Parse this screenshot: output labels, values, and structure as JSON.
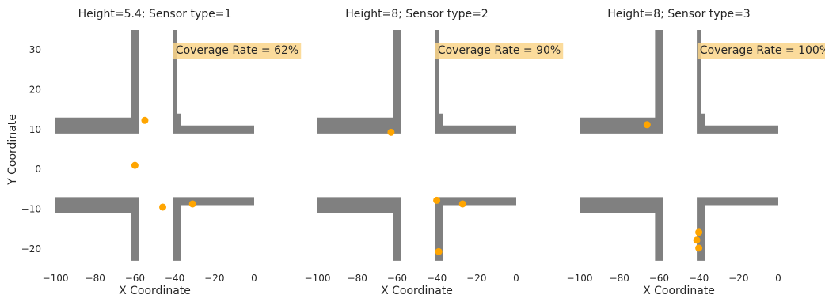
{
  "colors": {
    "building": "#808080",
    "sensor": "#FFA500",
    "coverage_box": "#FAD58A",
    "text": "#262626",
    "background": "#ffffff"
  },
  "chart_data": [
    {
      "type": "scatter",
      "title": "Height=5.4; Sensor type=1",
      "xlabel": "X Coordinate",
      "ylabel": "Y Coordinate",
      "xlim": [
        -100,
        0
      ],
      "ylim": [
        -25,
        35
      ],
      "xticks": [
        -100,
        -80,
        -60,
        -40,
        -20,
        0
      ],
      "yticks": [
        -20,
        -10,
        0,
        10,
        20,
        30
      ],
      "grid": false,
      "annotation": "Coverage Rate = 62%",
      "sensors": [
        {
          "x": -55,
          "y": 12.3
        },
        {
          "x": -60,
          "y": 1
        },
        {
          "x": -46,
          "y": -9.5
        },
        {
          "x": -31,
          "y": -8.7
        }
      ]
    },
    {
      "type": "scatter",
      "title": "Height=8; Sensor type=2",
      "xlabel": "X Coordinate",
      "ylabel": "",
      "xlim": [
        -100,
        0
      ],
      "ylim": [
        -25,
        35
      ],
      "xticks": [
        -100,
        -80,
        -60,
        -40,
        -20,
        0
      ],
      "yticks": [],
      "grid": false,
      "annotation": "Coverage Rate = 90%",
      "sensors": [
        {
          "x": -63,
          "y": 9.3
        },
        {
          "x": -40,
          "y": -7.8
        },
        {
          "x": -27,
          "y": -8.7
        },
        {
          "x": -39,
          "y": -20.7
        }
      ]
    },
    {
      "type": "scatter",
      "title": "Height=8; Sensor type=3",
      "xlabel": "X Coordinate",
      "ylabel": "",
      "xlim": [
        -100,
        0
      ],
      "ylim": [
        -25,
        35
      ],
      "xticks": [
        -100,
        -80,
        -60,
        -40,
        -20,
        0
      ],
      "yticks": [],
      "grid": false,
      "annotation": "Coverage Rate = 100%",
      "sensors": [
        {
          "x": -66,
          "y": 11.2
        },
        {
          "x": -40,
          "y": -15.8
        },
        {
          "x": -41,
          "y": -17.8
        },
        {
          "x": -40,
          "y": -19.8
        }
      ]
    }
  ]
}
